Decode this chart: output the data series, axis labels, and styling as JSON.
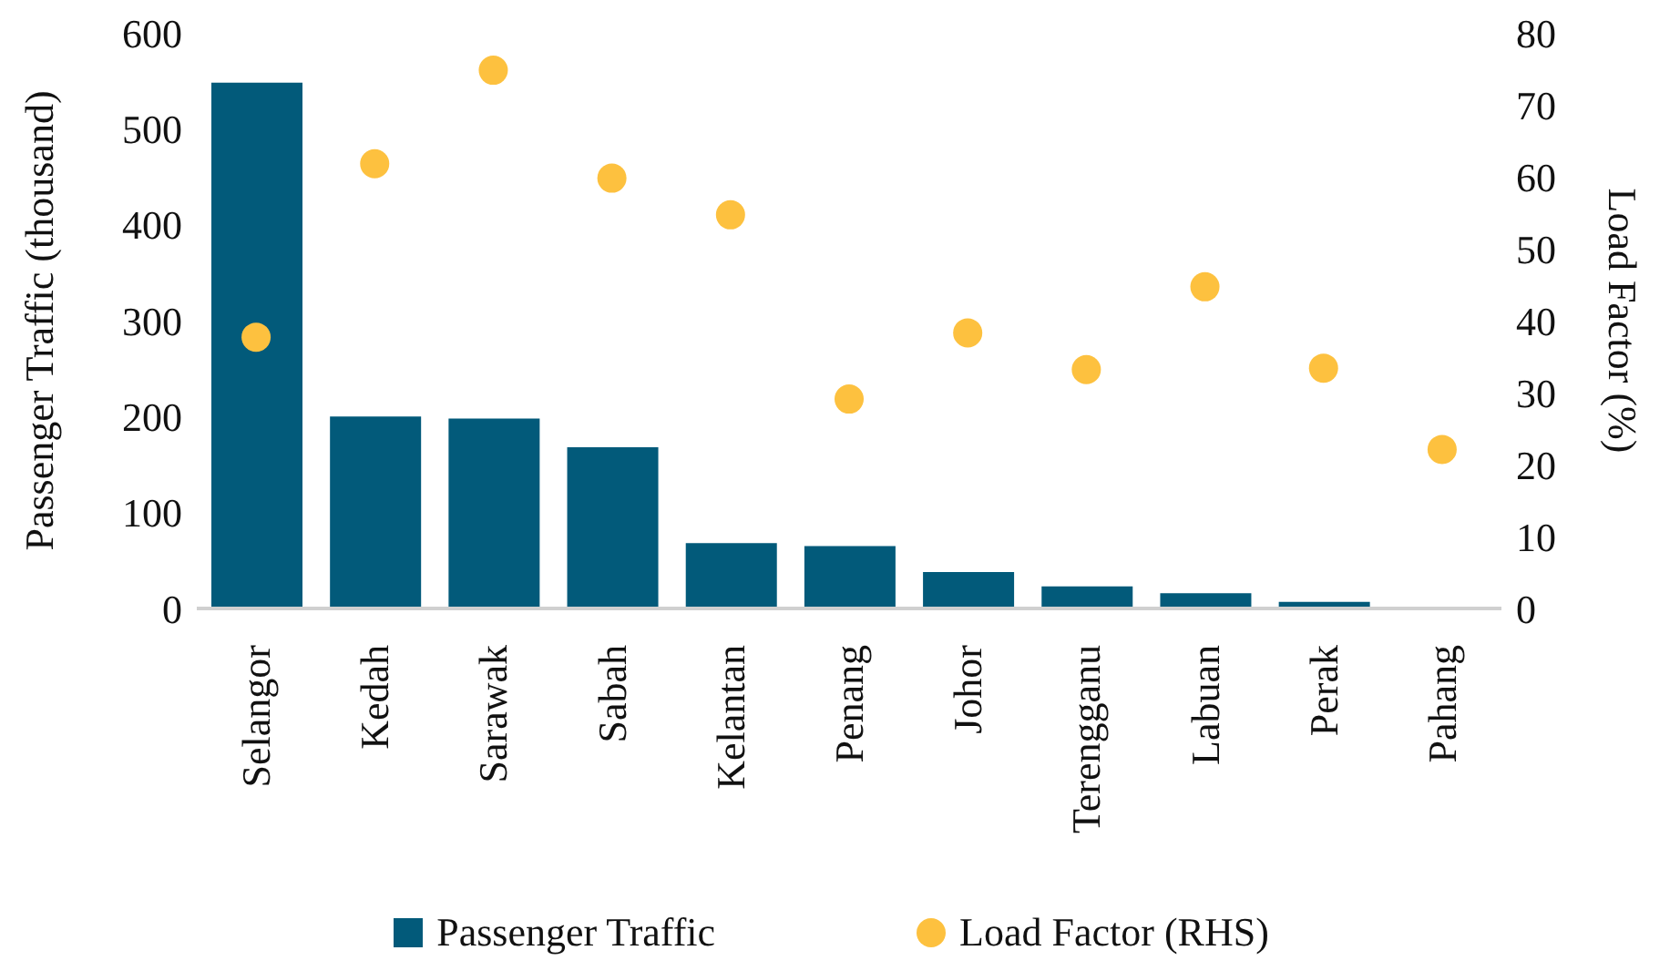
{
  "chart_data": {
    "type": "bar",
    "categories": [
      "Selangor",
      "Kedah",
      "Sarawak",
      "Sabah",
      "Kelantan",
      "Penang",
      "Johor",
      "Terengganu",
      "Labuan",
      "Perak",
      "Pahang"
    ],
    "ylabel": "Passenger Traffic (thousand)",
    "y2label": "Load Factor (%)",
    "series": [
      {
        "name": "Passenger Traffic",
        "color": "#025a7a",
        "values": [
          548,
          200,
          198,
          168,
          68,
          65,
          38,
          23,
          16,
          7,
          0
        ]
      },
      {
        "name": "Load Factor (RHS)",
        "type": "scatter",
        "axis": "y2",
        "color": "#fdc13f",
        "values": [
          37.7,
          61.8,
          74.8,
          59.8,
          54.7,
          29.1,
          38.3,
          33.2,
          44.7,
          33.4,
          22.1
        ]
      }
    ],
    "ylim": [
      0,
      600
    ],
    "yticks": [
      0,
      100,
      200,
      300,
      400,
      500,
      600
    ],
    "y2lim": [
      0,
      80
    ],
    "y2ticks": [
      0,
      10,
      20,
      30,
      40,
      50,
      60,
      70,
      80
    ],
    "grid": false,
    "legend": "bottom",
    "marker": "circle"
  }
}
